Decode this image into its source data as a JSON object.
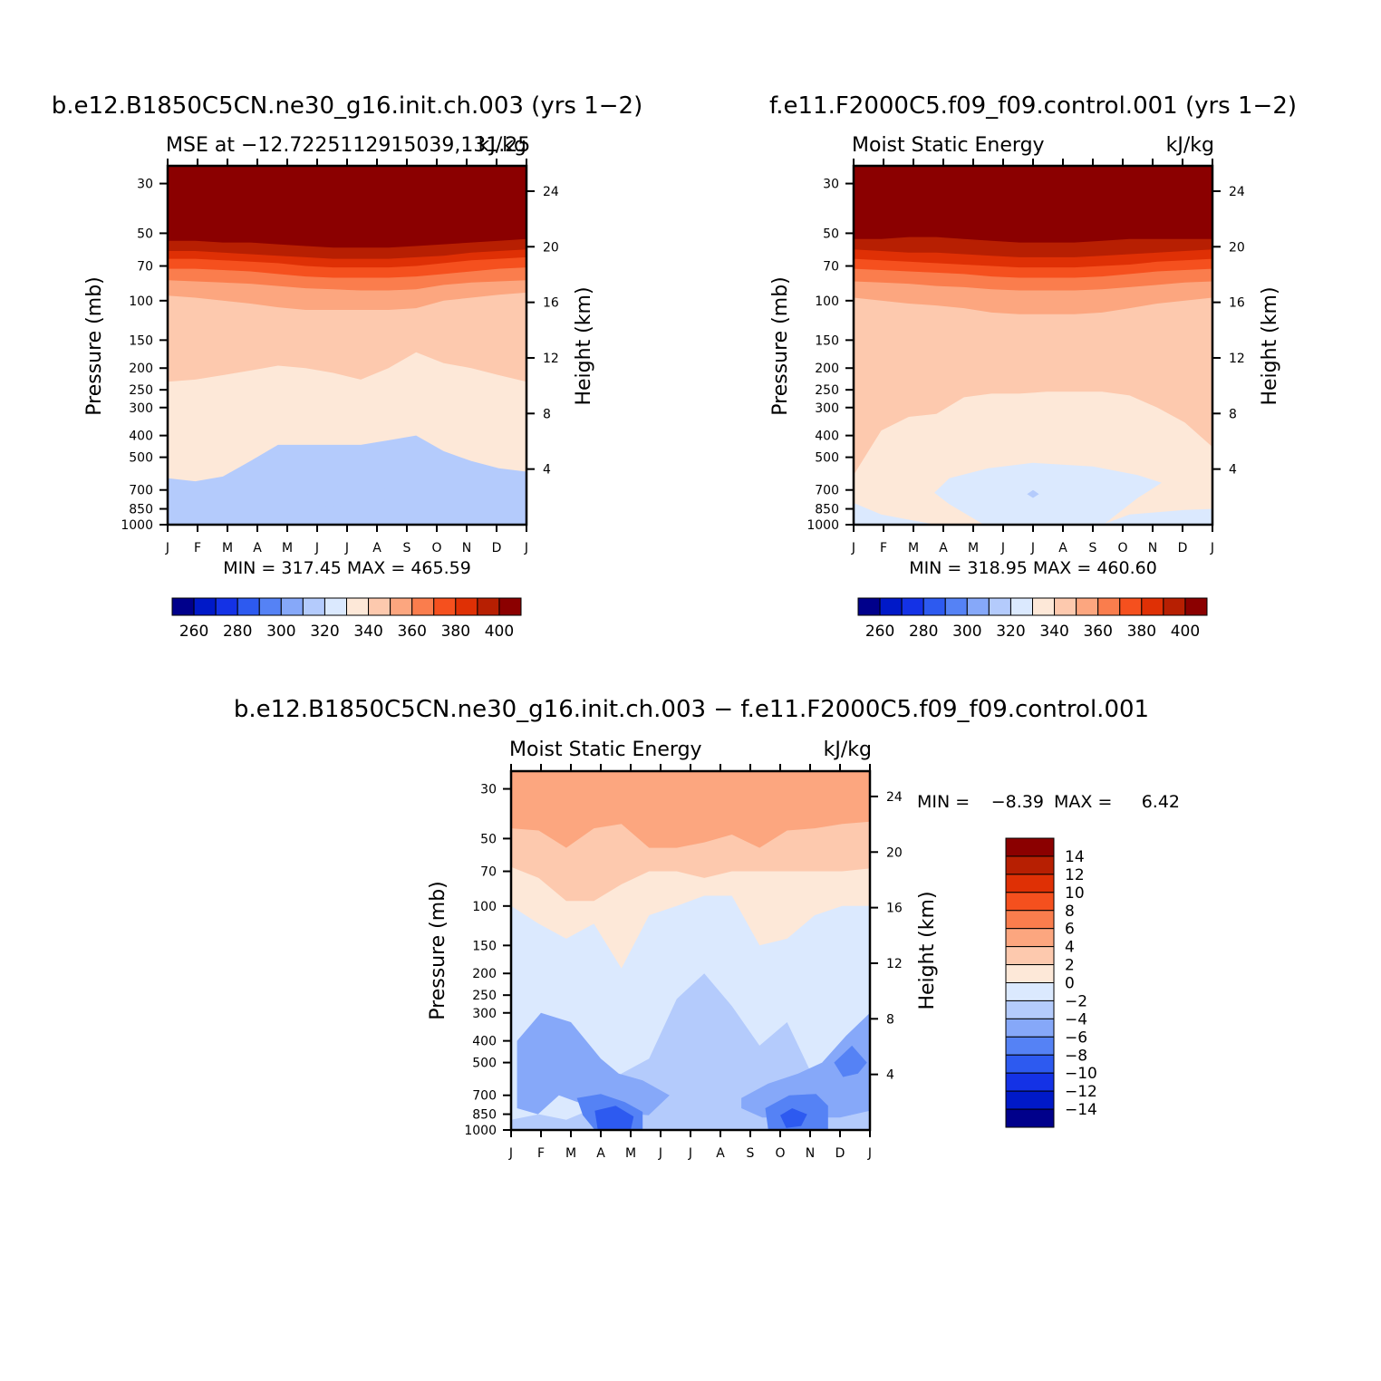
{
  "colors": {
    "mse": [
      "#00008b",
      "#0019c8",
      "#1432e6",
      "#2d5af0",
      "#5582f5",
      "#86a8f9",
      "#b4cbfc",
      "#dbe9fe",
      "#fde8d8",
      "#fdc9ae",
      "#fca67f",
      "#fa7d4d",
      "#f5501e",
      "#df3005",
      "#b71f02",
      "#8b0000"
    ],
    "diff": [
      "#00008b",
      "#0019c8",
      "#1432e6",
      "#2d5af0",
      "#5582f5",
      "#86a8f9",
      "#b4cbfc",
      "#dbe9fe",
      "#fde8d8",
      "#fdc9ae",
      "#fca67f",
      "#fa7d4d",
      "#f5501e",
      "#df3005",
      "#b71f02",
      "#8b0000"
    ]
  },
  "chart_data": [
    {
      "type": "heatmap",
      "panel": "top-left",
      "title": "b.e12.B1850C5CN.ne30_g16.init.ch.003 (yrs 1−2)",
      "subtitle_left": "MSE at −12.7225112915039,131.25",
      "subtitle_right": "kJ/kg",
      "xlabel": "",
      "ylabel": "Pressure (mb)",
      "y2label": "Height (km)",
      "x_ticks": [
        "J",
        "F",
        "M",
        "A",
        "M",
        "J",
        "J",
        "A",
        "S",
        "O",
        "N",
        "D",
        "J"
      ],
      "y_ticks": [
        30,
        50,
        70,
        100,
        150,
        200,
        250,
        300,
        400,
        500,
        700,
        850,
        1000
      ],
      "y2_ticks": [
        4,
        8,
        12,
        16,
        20,
        24
      ],
      "ylim": [
        25,
        1000
      ],
      "stats": "MIN = 317.45 MAX = 465.59",
      "levels": [
        260,
        270,
        280,
        290,
        300,
        310,
        320,
        330,
        340,
        350,
        360,
        370,
        380,
        390,
        400
      ],
      "colorbar_labels": [
        "260",
        "280",
        "300",
        "320",
        "340",
        "360",
        "380",
        "400"
      ],
      "boundaries": [
        {
          "upper": 320,
          "p": [
            620,
            640,
            610,
            520,
            440,
            440,
            440,
            440,
            420,
            400,
            470,
            520,
            560,
            580
          ]
        },
        {
          "upper": 330,
          "p": [
            960,
            950,
            900,
            850,
            800,
            800,
            810,
            810,
            800,
            760,
            750,
            720,
            690,
            680
          ]
        },
        {
          "upper": 340,
          "p": [
            230,
            225,
            215,
            205,
            195,
            200,
            210,
            225,
            200,
            170,
            190,
            200,
            215,
            230
          ]
        },
        {
          "upper": 350,
          "p": [
            95,
            97,
            100,
            103,
            107,
            110,
            110,
            110,
            110,
            108,
            100,
            97,
            94,
            92
          ]
        },
        {
          "upper": 360,
          "p": [
            81,
            82,
            83,
            84,
            86,
            88,
            89,
            90,
            90,
            89,
            85,
            83,
            82,
            81
          ]
        },
        {
          "upper": 370,
          "p": [
            72,
            72,
            73,
            74,
            76,
            78,
            79,
            79,
            79,
            78,
            76,
            74,
            72,
            71
          ]
        },
        {
          "upper": 380,
          "p": [
            65,
            65,
            66,
            67,
            68,
            70,
            71,
            71,
            71,
            70,
            68,
            66,
            65,
            64
          ]
        },
        {
          "upper": 390,
          "p": [
            60,
            60,
            61,
            62,
            63,
            64,
            65,
            65,
            65,
            64,
            63,
            61,
            60,
            59
          ]
        },
        {
          "upper": 400,
          "p": [
            54,
            54,
            55,
            55,
            56,
            57,
            58,
            58,
            58,
            57,
            56,
            55,
            54,
            53
          ]
        }
      ],
      "blobs": [
        {
          "upper": 320,
          "pts": [
            [
              4.4,
              760
            ],
            [
              5,
              700
            ],
            [
              6,
              660
            ],
            [
              7,
              680
            ],
            [
              7.8,
              720
            ],
            [
              7,
              800
            ],
            [
              6,
              830
            ],
            [
              5,
              820
            ]
          ]
        }
      ]
    },
    {
      "type": "heatmap",
      "panel": "top-right",
      "title": "f.e11.F2000C5.f09_f09.control.001 (yrs 1−2)",
      "subtitle_left": "Moist Static Energy",
      "subtitle_right": "kJ/kg",
      "xlabel": "",
      "ylabel": "Pressure (mb)",
      "y2label": "Height (km)",
      "x_ticks": [
        "J",
        "F",
        "M",
        "A",
        "M",
        "J",
        "J",
        "A",
        "S",
        "O",
        "N",
        "D",
        "J"
      ],
      "y_ticks": [
        30,
        50,
        70,
        100,
        150,
        200,
        250,
        300,
        400,
        500,
        700,
        850,
        1000
      ],
      "y2_ticks": [
        4,
        8,
        12,
        16,
        20,
        24
      ],
      "ylim": [
        25,
        1000
      ],
      "stats": "MIN = 318.95 MAX = 460.60",
      "levels": [
        260,
        270,
        280,
        290,
        300,
        310,
        320,
        330,
        340,
        350,
        360,
        370,
        380,
        390,
        400
      ],
      "colorbar_labels": [
        "260",
        "280",
        "300",
        "320",
        "340",
        "360",
        "380",
        "400"
      ],
      "boundaries": [
        {
          "upper": 330,
          "p": [
            800,
            900,
            950,
            1000,
            1000,
            1000,
            1000,
            1000,
            1000,
            1000,
            900,
            880,
            860,
            850
          ]
        },
        {
          "upper": 340,
          "p": [
            600,
            380,
            330,
            320,
            270,
            260,
            260,
            255,
            255,
            255,
            265,
            300,
            350,
            450
          ]
        },
        {
          "upper": 350,
          "p": [
            97,
            100,
            103,
            105,
            108,
            113,
            115,
            115,
            115,
            113,
            108,
            103,
            100,
            97
          ]
        },
        {
          "upper": 360,
          "p": [
            82,
            83,
            84,
            86,
            87,
            89,
            90,
            90,
            90,
            89,
            87,
            85,
            83,
            82
          ]
        },
        {
          "upper": 370,
          "p": [
            72,
            73,
            74,
            75,
            76,
            78,
            79,
            79,
            79,
            78,
            76,
            74,
            73,
            72
          ]
        },
        {
          "upper": 380,
          "p": [
            65,
            66,
            67,
            68,
            69,
            70,
            71,
            71,
            71,
            70,
            69,
            67,
            66,
            65
          ]
        },
        {
          "upper": 390,
          "p": [
            59,
            60,
            61,
            61,
            62,
            63,
            64,
            64,
            64,
            63,
            62,
            61,
            60,
            59
          ]
        },
        {
          "upper": 400,
          "p": [
            53,
            53,
            52,
            52,
            53,
            54,
            55,
            55,
            55,
            54,
            53,
            53,
            53,
            53
          ]
        }
      ],
      "blobs": [
        {
          "upper": 330,
          "pts": [
            [
              2.7,
              720
            ],
            [
              3.2,
              620
            ],
            [
              4.5,
              560
            ],
            [
              6,
              530
            ],
            [
              8,
              550
            ],
            [
              9.5,
              600
            ],
            [
              10.3,
              650
            ],
            [
              9.5,
              760
            ],
            [
              8.4,
              990
            ],
            [
              4.3,
              990
            ],
            [
              3.2,
              810
            ]
          ]
        },
        {
          "upper": 320,
          "pts": [
            [
              5.8,
              730
            ],
            [
              6,
              700
            ],
            [
              6.2,
              730
            ],
            [
              6,
              760
            ]
          ]
        }
      ]
    },
    {
      "type": "heatmap",
      "panel": "bottom",
      "title": "b.e12.B1850C5CN.ne30_g16.init.ch.003 − f.e11.F2000C5.f09_f09.control.001",
      "subtitle_left": "Moist Static Energy",
      "subtitle_right": "kJ/kg",
      "xlabel": "",
      "ylabel": "Pressure (mb)",
      "y2label": "Height (km)",
      "x_ticks": [
        "J",
        "F",
        "M",
        "A",
        "M",
        "J",
        "J",
        "A",
        "S",
        "O",
        "N",
        "D",
        "J"
      ],
      "y_ticks": [
        30,
        50,
        70,
        100,
        150,
        200,
        250,
        300,
        400,
        500,
        700,
        850,
        1000
      ],
      "y2_ticks": [
        4,
        8,
        12,
        16,
        20,
        24
      ],
      "ylim": [
        25,
        1000
      ],
      "stats_min_label": "MIN =",
      "stats_min": "−8.39",
      "stats_max_label": "MAX =",
      "stats_max": "6.42",
      "levels": [
        -14,
        -12,
        -10,
        -8,
        -6,
        -4,
        -2,
        0,
        2,
        4,
        6,
        8,
        10,
        12,
        14
      ],
      "colorbar_labels": [
        "14",
        "12",
        "10",
        "8",
        "6",
        "4",
        "2",
        "0",
        "−2",
        "−4",
        "−6",
        "−8",
        "−10",
        "−12",
        "−14"
      ],
      "boundaries": [
        {
          "upper": -4,
          "p": [
            1000,
            1000,
            1000,
            1000,
            1000,
            1000,
            1000,
            1000,
            1000,
            1000,
            1000,
            1000,
            1000,
            1000
          ]
        },
        {
          "upper": -2,
          "p": [
            900,
            850,
            900,
            800,
            560,
            480,
            260,
            200,
            280,
            420,
            330,
            600,
            400,
            800
          ]
        },
        {
          "upper": 0,
          "p": [
            100,
            120,
            140,
            120,
            190,
            110,
            100,
            90,
            90,
            150,
            140,
            110,
            100,
            100
          ]
        },
        {
          "upper": 2,
          "p": [
            67,
            75,
            95,
            95,
            80,
            70,
            70,
            75,
            70,
            70,
            70,
            70,
            70,
            68
          ]
        },
        {
          "upper": 4,
          "p": [
            45,
            46,
            55,
            45,
            43,
            55,
            55,
            52,
            48,
            55,
            46,
            45,
            43,
            42
          ]
        }
      ],
      "blobs": [
        {
          "upper": -4,
          "pts": [
            [
              0.2,
              400
            ],
            [
              1,
              300
            ],
            [
              2,
              330
            ],
            [
              3,
              480
            ],
            [
              3.6,
              560
            ],
            [
              4.4,
              600
            ],
            [
              5.3,
              700
            ],
            [
              4.6,
              860
            ],
            [
              3,
              820
            ],
            [
              1.6,
              700
            ],
            [
              0.9,
              850
            ],
            [
              0.2,
              800
            ]
          ]
        },
        {
          "upper": -4,
          "pts": [
            [
              7.7,
              720
            ],
            [
              8.6,
              620
            ],
            [
              9.6,
              560
            ],
            [
              10.4,
              500
            ],
            [
              11.2,
              380
            ],
            [
              12,
              300
            ],
            [
              12,
              820
            ],
            [
              11,
              880
            ],
            [
              9.8,
              880
            ],
            [
              8.4,
              880
            ],
            [
              7.7,
              800
            ]
          ]
        },
        {
          "upper": -6,
          "pts": [
            [
              2.2,
              720
            ],
            [
              3,
              690
            ],
            [
              3.8,
              750
            ],
            [
              4.4,
              830
            ],
            [
              4.4,
              1000
            ],
            [
              2.8,
              1000
            ],
            [
              2.4,
              860
            ]
          ]
        },
        {
          "upper": -6,
          "pts": [
            [
              8.5,
              800
            ],
            [
              9.3,
              700
            ],
            [
              10.2,
              690
            ],
            [
              10.6,
              780
            ],
            [
              10.6,
              1000
            ],
            [
              8.6,
              1000
            ]
          ]
        },
        {
          "upper": -6,
          "pts": [
            [
              10.8,
              500
            ],
            [
              11.4,
              420
            ],
            [
              11.9,
              500
            ],
            [
              11.6,
              560
            ],
            [
              11.1,
              580
            ]
          ]
        },
        {
          "upper": -8,
          "pts": [
            [
              2.8,
              820
            ],
            [
              3.5,
              780
            ],
            [
              4.1,
              870
            ],
            [
              4,
              1000
            ],
            [
              2.9,
              1000
            ]
          ]
        },
        {
          "upper": -8,
          "pts": [
            [
              9,
              860
            ],
            [
              9.4,
              800
            ],
            [
              9.9,
              850
            ],
            [
              9.7,
              960
            ],
            [
              9.2,
              980
            ]
          ]
        }
      ]
    }
  ]
}
